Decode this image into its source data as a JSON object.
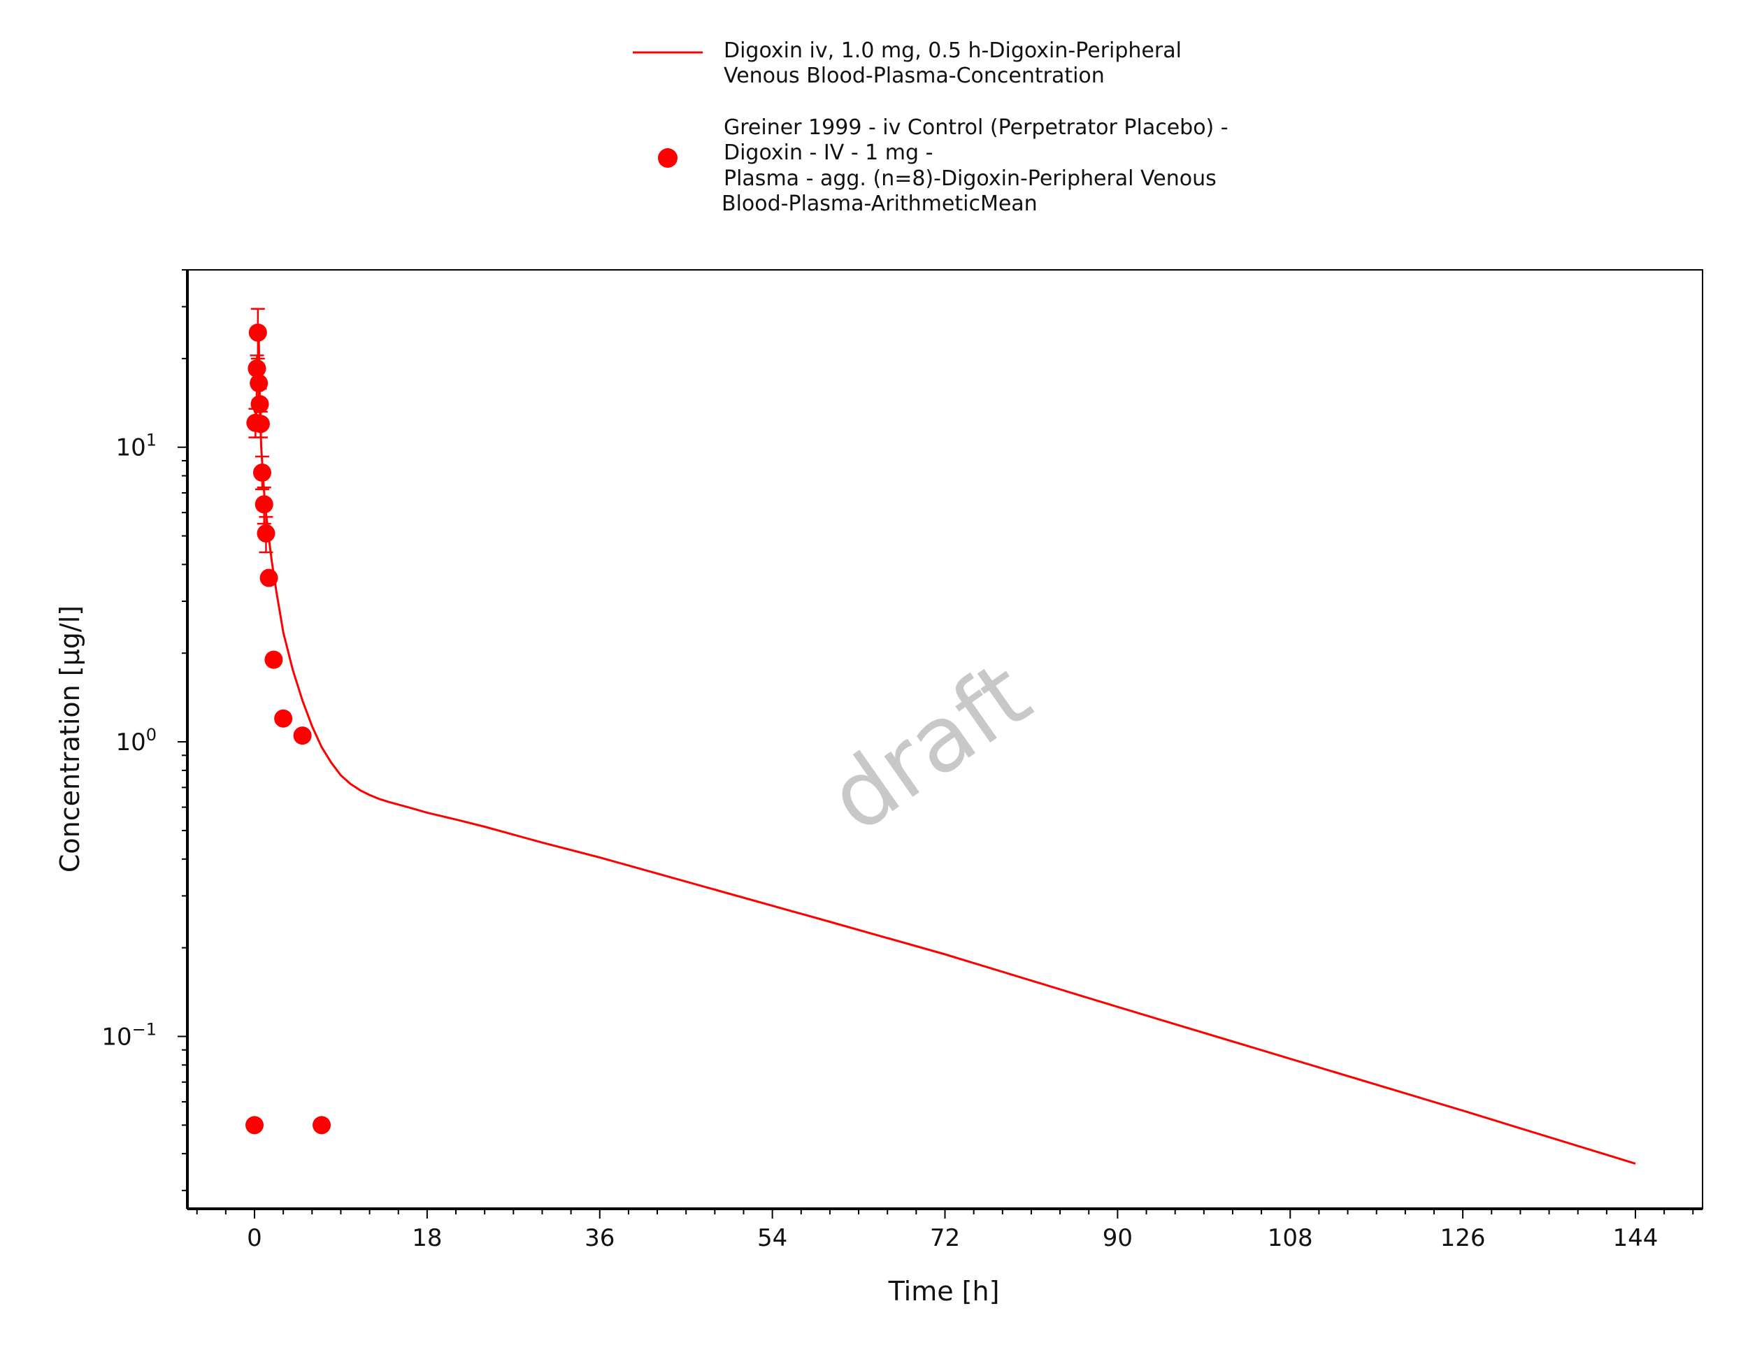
{
  "chart_data": {
    "type": "line",
    "xlabel": "Time [h]",
    "ylabel": "Concentration [µg/l]",
    "x_ticks": [
      "0",
      "18",
      "36",
      "54",
      "72",
      "90",
      "108",
      "126",
      "144"
    ],
    "y_ticks": [
      {
        "value": 0.1,
        "base": "10",
        "exp": "−1"
      },
      {
        "value": 1,
        "base": "10",
        "exp": "0"
      },
      {
        "value": 10,
        "base": "10",
        "exp": "1"
      }
    ],
    "xlim": [
      -7,
      151
    ],
    "ylim": [
      0.026,
      40
    ],
    "y_scale": "log",
    "grid": false,
    "legend_position": "top",
    "watermark": "draft",
    "color": "#ff0000",
    "series": [
      {
        "name": "Digoxin iv, 1.0 mg, 0.5 h-Digoxin-Peripheral Venous Blood-Plasma-Concentration",
        "name_lines": [
          "Digoxin iv, 1.0 mg, 0.5 h-Digoxin-Peripheral",
          "Venous Blood-Plasma-Concentration"
        ],
        "type": "line",
        "x": [
          0.15,
          0.3,
          0.45,
          0.55,
          0.7,
          0.9,
          1.1,
          1.4,
          1.8,
          2.3,
          3.0,
          4.0,
          5.0,
          6.0,
          7.0,
          8.0,
          9.0,
          10.0,
          11.0,
          12.0,
          13.0,
          14.0,
          16.0,
          18.0,
          21.0,
          24.0,
          30.0,
          36.0,
          48.0,
          60.0,
          72.0,
          90.0,
          108.0,
          126.0,
          144.0
        ],
        "y": [
          12.0,
          18.0,
          23.0,
          14.0,
          10.0,
          7.8,
          6.4,
          5.2,
          4.1,
          3.2,
          2.35,
          1.75,
          1.38,
          1.13,
          0.96,
          0.85,
          0.77,
          0.72,
          0.685,
          0.66,
          0.64,
          0.625,
          0.6,
          0.575,
          0.545,
          0.515,
          0.455,
          0.405,
          0.315,
          0.245,
          0.19,
          0.126,
          0.084,
          0.056,
          0.037
        ]
      },
      {
        "name": "Greiner 1999 - iv Control (Perpetrator Placebo) - Digoxin - IV - 1 mg - Plasma - agg. (n=8)-Digoxin-Peripheral Venous Blood-Plasma-ArithmeticMean",
        "name_lines": [
          "Greiner 1999 - iv Control (Perpetrator Placebo) -",
          "Digoxin - IV - 1 mg -",
          "Plasma - agg. (n=8)-Digoxin-Peripheral Venous",
          "Blood-Plasma-ArithmeticMean"
        ],
        "type": "scatter",
        "x": [
          0.0,
          0.1,
          0.25,
          0.35,
          0.45,
          0.55,
          0.65,
          0.8,
          1.0,
          1.2,
          1.5,
          2.0,
          3.0,
          5.0,
          7.0
        ],
        "y": [
          0.05,
          12.1,
          18.5,
          24.5,
          16.5,
          14.0,
          12.0,
          8.2,
          6.4,
          5.1,
          3.6,
          1.9,
          1.2,
          1.05,
          0.05
        ],
        "y_upper": [
          null,
          13.5,
          20.5,
          29.5,
          18.5,
          15.8,
          13.2,
          9.3,
          7.3,
          5.8,
          null,
          null,
          null,
          null,
          null
        ],
        "y_lower": [
          null,
          10.8,
          16.5,
          20.0,
          14.5,
          12.2,
          10.8,
          7.2,
          5.5,
          4.4,
          null,
          null,
          null,
          null,
          null
        ]
      }
    ]
  }
}
